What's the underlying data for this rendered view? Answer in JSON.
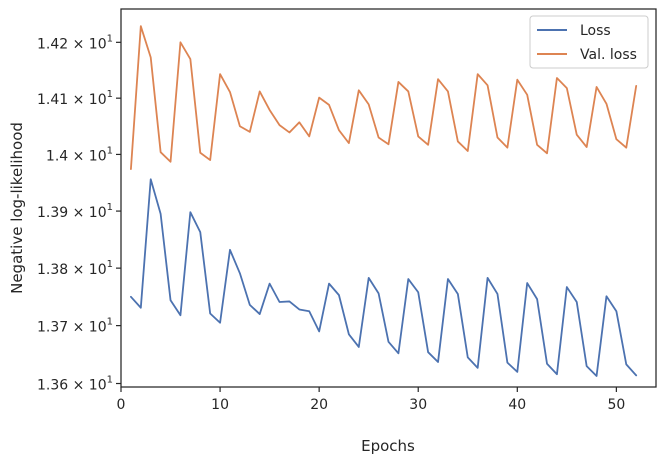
{
  "chart_data": {
    "type": "line",
    "title": "",
    "xlabel": "Epochs",
    "ylabel": "Negative log-likelihood",
    "xlim": [
      0,
      54
    ],
    "ylim": [
      13.594,
      14.26
    ],
    "y_scale": "log",
    "grid": false,
    "legend_position": "top-right",
    "x_ticks": [
      0,
      10,
      20,
      30,
      40,
      50
    ],
    "x_tick_labels": [
      "0",
      "10",
      "20",
      "30",
      "40",
      "50"
    ],
    "y_ticks": [
      13.6,
      13.7,
      13.8,
      13.9,
      14.0,
      14.1,
      14.2
    ],
    "y_tick_labels": [
      {
        "mantissa": "1.36",
        "times": "×",
        "base": "10",
        "exponent": "1"
      },
      {
        "mantissa": "1.37",
        "times": "×",
        "base": "10",
        "exponent": "1"
      },
      {
        "mantissa": "1.38",
        "times": "×",
        "base": "10",
        "exponent": "1"
      },
      {
        "mantissa": "1.39",
        "times": "×",
        "base": "10",
        "exponent": "1"
      },
      {
        "mantissa": "1.4",
        "times": "×",
        "base": "10",
        "exponent": "1"
      },
      {
        "mantissa": "1.41",
        "times": "×",
        "base": "10",
        "exponent": "1"
      },
      {
        "mantissa": "1.42",
        "times": "×",
        "base": "10",
        "exponent": "1"
      }
    ],
    "x": [
      1,
      2,
      3,
      4,
      5,
      6,
      7,
      8,
      9,
      10,
      11,
      12,
      13,
      14,
      15,
      16,
      17,
      18,
      19,
      20,
      21,
      22,
      23,
      24,
      25,
      26,
      27,
      28,
      29,
      30,
      31,
      32,
      33,
      34,
      35,
      36,
      37,
      38,
      39,
      40,
      41,
      42,
      43,
      44,
      45,
      46,
      47,
      48,
      49,
      50,
      51,
      52
    ],
    "series": [
      {
        "name": "Loss",
        "color": "#4c72b0",
        "values": [
          13.75,
          13.731,
          13.956,
          13.895,
          13.744,
          13.718,
          13.898,
          13.863,
          13.721,
          13.705,
          13.832,
          13.791,
          13.736,
          13.72,
          13.773,
          13.741,
          13.742,
          13.728,
          13.725,
          13.69,
          13.773,
          13.753,
          13.685,
          13.663,
          13.783,
          13.756,
          13.672,
          13.652,
          13.781,
          13.758,
          13.654,
          13.637,
          13.781,
          13.755,
          13.645,
          13.627,
          13.783,
          13.755,
          13.636,
          13.62,
          13.774,
          13.746,
          13.634,
          13.616,
          13.767,
          13.741,
          13.63,
          13.613,
          13.751,
          13.725,
          13.633,
          13.614
        ]
      },
      {
        "name": "Val. loss",
        "color": "#dd8452",
        "values": [
          13.974,
          14.229,
          14.173,
          14.004,
          13.987,
          14.2,
          14.17,
          14.003,
          13.99,
          14.143,
          14.111,
          14.05,
          14.04,
          14.112,
          14.079,
          14.052,
          14.039,
          14.057,
          14.032,
          14.101,
          14.088,
          14.043,
          14.02,
          14.114,
          14.089,
          14.03,
          14.018,
          14.129,
          14.112,
          14.032,
          14.017,
          14.134,
          14.112,
          14.023,
          14.006,
          14.143,
          14.123,
          14.03,
          14.012,
          14.133,
          14.106,
          14.017,
          14.002,
          14.136,
          14.118,
          14.035,
          14.013,
          14.12,
          14.09,
          14.027,
          14.012,
          14.122
        ]
      }
    ]
  }
}
